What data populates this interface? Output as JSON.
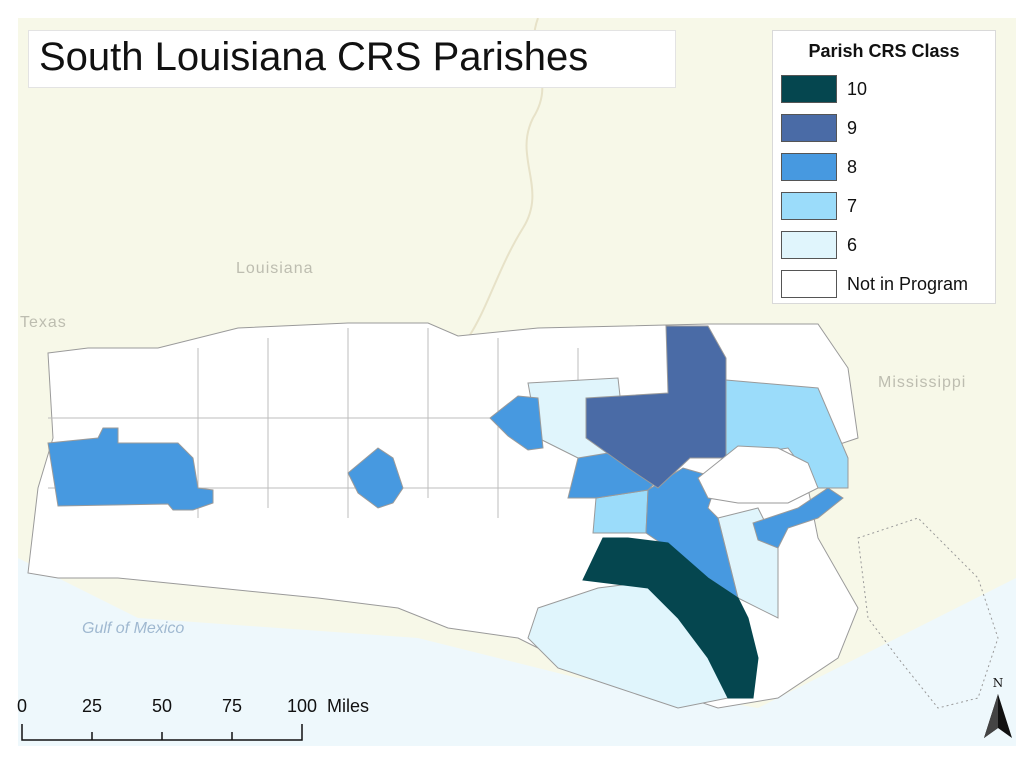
{
  "title": "South Louisiana CRS Parishes",
  "legend": {
    "title": "Parish CRS Class",
    "items": [
      {
        "label": "10",
        "color": "#05464f"
      },
      {
        "label": "9",
        "color": "#4a6ba6"
      },
      {
        "label": "8",
        "color": "#4799e0"
      },
      {
        "label": "7",
        "color": "#9bdcfa"
      },
      {
        "label": "6",
        "color": "#e0f5fc"
      },
      {
        "label": "Not in Program",
        "color": "#ffffff"
      }
    ]
  },
  "map_labels": {
    "louisiana": "Louisiana",
    "texas": "Texas",
    "mississippi": "Mississippi",
    "gulf": "Gulf of Mexico"
  },
  "scale": {
    "ticks": [
      "0",
      "25",
      "50",
      "75",
      "100"
    ],
    "units": "Miles"
  },
  "north": "N",
  "colors": {
    "land_background": "#f7f8e8",
    "water": "#eef8fc",
    "parish_border": "#9a9a9a"
  }
}
